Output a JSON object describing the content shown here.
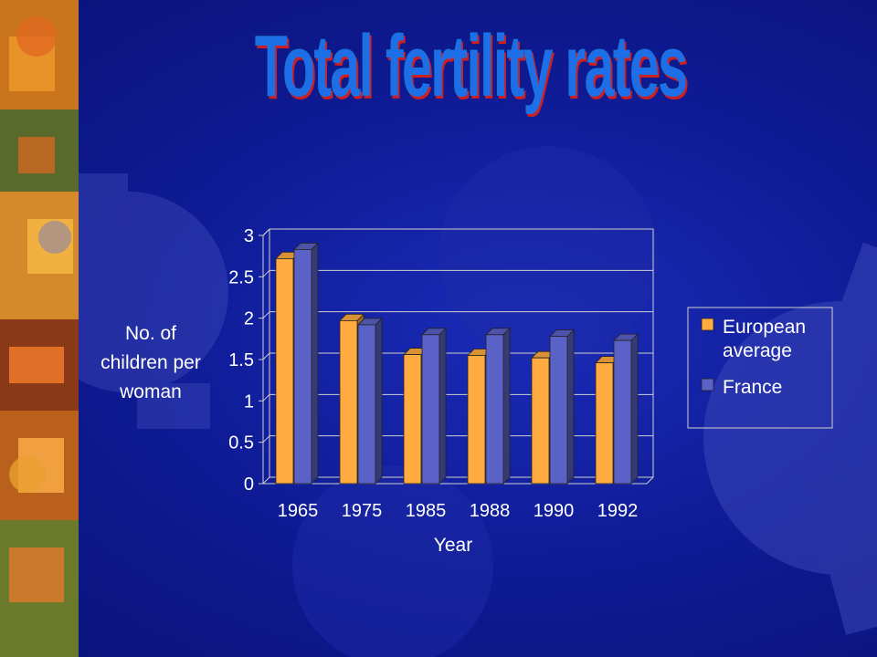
{
  "slide": {
    "title": "Total fertility rates"
  },
  "colors": {
    "background": "#0e1a92",
    "title": "#1d6fe8",
    "title_shadow": "#cc2020",
    "european": "#ffab40",
    "france": "#5a62c8"
  },
  "chart_data": {
    "type": "bar",
    "title": "",
    "xlabel": "Year",
    "ylabel": "No. of children per woman",
    "ylabel_lines": [
      "No. of",
      "children per",
      "woman"
    ],
    "categories": [
      "1965",
      "1975",
      "1985",
      "1988",
      "1990",
      "1992"
    ],
    "series": [
      {
        "name": "European average",
        "name_lines": [
          "European",
          "average"
        ],
        "values": [
          2.72,
          1.97,
          1.56,
          1.55,
          1.52,
          1.46
        ]
      },
      {
        "name": "France",
        "name_lines": [
          "France"
        ],
        "values": [
          2.83,
          1.92,
          1.8,
          1.8,
          1.78,
          1.73
        ]
      }
    ],
    "ylim": [
      0,
      3
    ],
    "yticks": [
      "0",
      "0.5",
      "1",
      "1.5",
      "2",
      "2.5",
      "3"
    ],
    "grid": true,
    "legend": "right",
    "style": "3d-clustered-column"
  }
}
